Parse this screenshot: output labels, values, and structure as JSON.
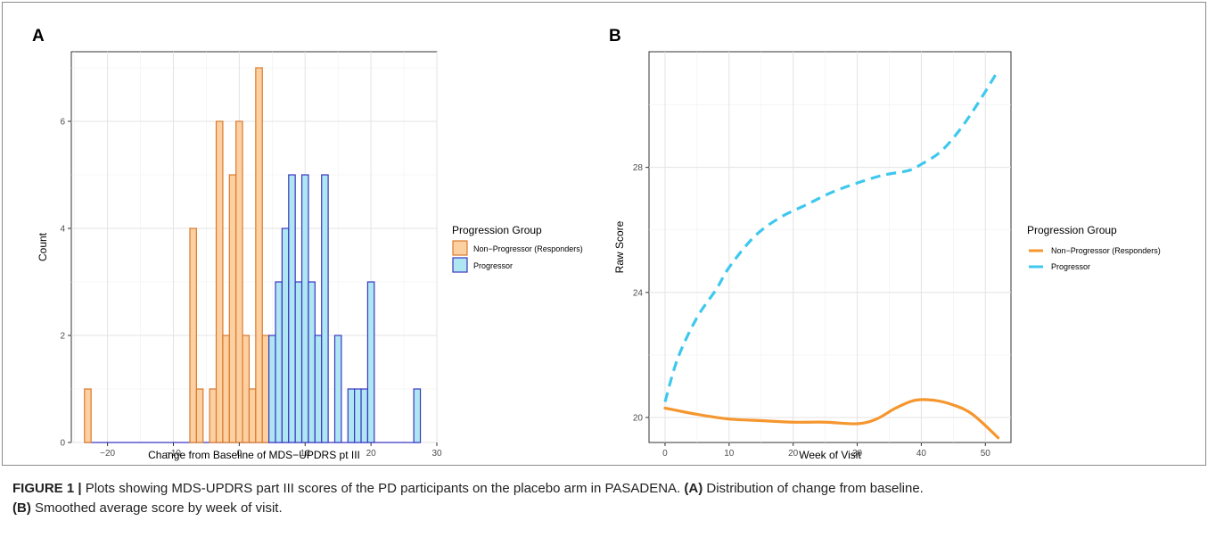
{
  "caption": {
    "label": "FIGURE 1 |",
    "text": " Plots showing MDS-UPDRS part III scores of the PD participants on the placebo arm in PASADENA. ",
    "a_tag": "(A)",
    "a_text": " Distribution of change from baseline.",
    "b_tag": "(B)",
    "b_text": " Smoothed average score by week of visit."
  },
  "chart_data": [
    {
      "type": "bar",
      "panel": "A",
      "xlabel": "Change from Baseline of MDS−UPDRS pt III",
      "ylabel": "Count",
      "xlim": [
        -25.5,
        30
      ],
      "ylim": [
        0,
        7.3
      ],
      "x_ticks": [
        -20,
        -10,
        0,
        10,
        20,
        30
      ],
      "x_tick_labels": [
        "−20",
        "−10",
        "0",
        "10",
        "20",
        "30"
      ],
      "y_ticks": [
        0,
        2,
        4,
        6
      ],
      "y_tick_labels": [
        "0",
        "2",
        "4",
        "6"
      ],
      "bin_width": 1,
      "grid": true,
      "legend": {
        "title": "Progression Group",
        "position": "right"
      },
      "colors": {
        "non_progressor_fill": "#fdd0a2",
        "non_progressor_stroke": "#d97a2b",
        "progressor_fill": "#aee6f2",
        "progressor_stroke": "#3b36c2"
      },
      "series": [
        {
          "name": "Non−Progressor (Responders)",
          "x": [
            -23,
            -7,
            -6,
            -4,
            -3,
            -2,
            -1,
            0,
            1,
            2,
            3,
            4
          ],
          "values": [
            1,
            4,
            1,
            1,
            6,
            2,
            5,
            6,
            2,
            1,
            7,
            2
          ]
        },
        {
          "name": "Progressor",
          "x": [
            5,
            6,
            7,
            8,
            9,
            10,
            11,
            12,
            13,
            15,
            17,
            18,
            19,
            20,
            27
          ],
          "values": [
            2,
            3,
            4,
            5,
            3,
            5,
            3,
            2,
            5,
            2,
            1,
            1,
            1,
            3,
            1
          ]
        }
      ]
    },
    {
      "type": "line",
      "panel": "B",
      "xlabel": "Week of Visit",
      "ylabel": "Raw Score",
      "xlim": [
        -2.5,
        54
      ],
      "ylim": [
        19.2,
        31.7
      ],
      "x_ticks": [
        0,
        10,
        20,
        30,
        40,
        50
      ],
      "x_tick_labels": [
        "0",
        "10",
        "20",
        "30",
        "40",
        "50"
      ],
      "y_ticks": [
        20,
        24,
        28
      ],
      "y_tick_labels": [
        "20",
        "24",
        "28"
      ],
      "grid": true,
      "legend": {
        "title": "Progression Group",
        "position": "right"
      },
      "colors": {
        "non_progressor": "#f5962e",
        "progressor": "#3fc8ee"
      },
      "series": [
        {
          "name": "Non−Progressor (Responders)",
          "x": [
            0,
            5,
            10,
            15,
            20,
            25,
            30,
            33,
            36,
            39,
            42,
            45,
            48,
            52
          ],
          "values": [
            20.3,
            20.1,
            19.95,
            19.9,
            19.85,
            19.85,
            19.8,
            19.95,
            20.3,
            20.55,
            20.55,
            20.4,
            20.1,
            19.35
          ]
        },
        {
          "name": "Progressor",
          "x": [
            0,
            2,
            5,
            8,
            10,
            14,
            18,
            22,
            26,
            30,
            34,
            38,
            40,
            43,
            46,
            49,
            52
          ],
          "values": [
            20.5,
            21.9,
            23.2,
            24.1,
            24.8,
            25.8,
            26.4,
            26.8,
            27.2,
            27.5,
            27.75,
            27.9,
            28.1,
            28.5,
            29.2,
            30.1,
            31.1
          ]
        }
      ]
    }
  ]
}
